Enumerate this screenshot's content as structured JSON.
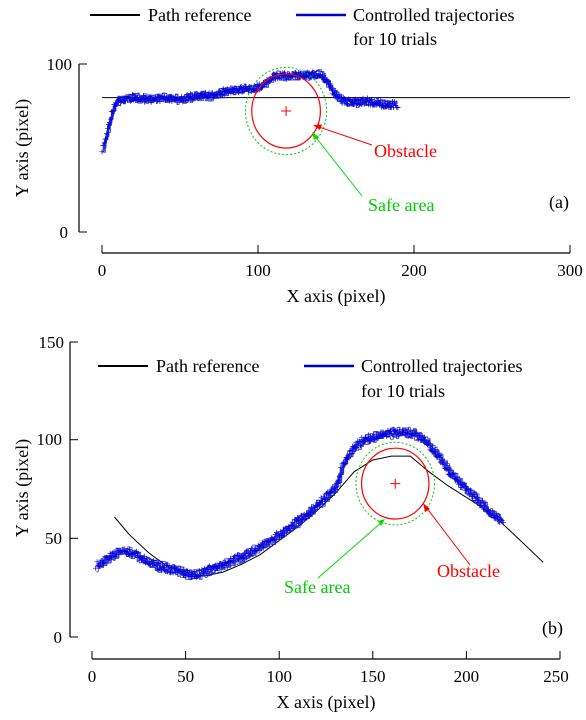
{
  "chart_data": [
    {
      "type": "line",
      "panel_label": "(a)",
      "xlabel": "X axis (pixel)",
      "ylabel": "Y axis (pixel)",
      "xlim": [
        0,
        300
      ],
      "ylim": [
        0,
        100
      ],
      "xticks": [
        "0",
        "100",
        "200",
        "300"
      ],
      "yticks": [
        "0",
        "100"
      ],
      "legend": {
        "position": "top",
        "entries": [
          {
            "label": "Path reference",
            "color": "#000000"
          },
          {
            "label_line1": "Controlled trajectories",
            "label_line2": "for 10 trials",
            "color": "#0000cc"
          }
        ]
      },
      "reference_path": {
        "x": [
          0,
          300
        ],
        "y": [
          80,
          80
        ]
      },
      "trajectory": {
        "x": [
          0,
          2,
          4,
          6,
          8,
          10,
          12,
          20,
          30,
          40,
          50,
          60,
          70,
          80,
          90,
          100,
          105,
          110,
          120,
          130,
          140,
          145,
          150,
          155,
          160,
          170,
          180,
          190
        ],
        "y": [
          47,
          55,
          63,
          70,
          75,
          78,
          79,
          80,
          79,
          80,
          79,
          81,
          81,
          84,
          85,
          86,
          89,
          93,
          93,
          93,
          94,
          88,
          81,
          78,
          77,
          78,
          76,
          76
        ]
      },
      "trials": 10,
      "obstacle": {
        "label": "Obstacle",
        "cx": 118,
        "cy": 72,
        "r": 22,
        "color": "#ff0000"
      },
      "safe_area": {
        "label": "Safe area",
        "cx": 118,
        "cy": 72,
        "r": 26,
        "color": "#00cc00"
      }
    },
    {
      "type": "line",
      "panel_label": "(b)",
      "xlabel": "X axis (pixel)",
      "ylabel": "Y axis (pixel)",
      "xlim": [
        0,
        250
      ],
      "ylim": [
        0,
        150
      ],
      "xticks": [
        "0",
        "50",
        "100",
        "150",
        "200",
        "250"
      ],
      "yticks": [
        "0",
        "50",
        "100",
        "150"
      ],
      "legend": {
        "position": "top",
        "entries": [
          {
            "label": "Path reference",
            "color": "#000000"
          },
          {
            "label_line1": "Controlled trajectories",
            "label_line2": "for 10 trials",
            "color": "#0000cc"
          }
        ]
      },
      "reference_path": {
        "x": [
          12,
          20,
          30,
          40,
          50,
          60,
          70,
          80,
          90,
          100,
          110,
          120,
          130,
          140,
          150,
          160,
          165,
          170,
          175,
          180,
          190,
          200,
          210,
          220,
          230,
          241
        ],
        "y": [
          61,
          52,
          43,
          36,
          32,
          31,
          33,
          37,
          42,
          49,
          56,
          64,
          73,
          84,
          90,
          92,
          92,
          92,
          88,
          84,
          77,
          71,
          65,
          57,
          48,
          38
        ]
      },
      "trajectory": {
        "x": [
          2,
          5,
          10,
          15,
          20,
          25,
          30,
          35,
          40,
          45,
          50,
          55,
          60,
          70,
          80,
          90,
          100,
          110,
          120,
          130,
          135,
          140,
          145,
          150,
          160,
          170,
          175,
          180,
          185,
          190,
          200,
          210,
          220
        ],
        "y": [
          36,
          38,
          41,
          44,
          43,
          41,
          38,
          36,
          35,
          34,
          32,
          32,
          33,
          37,
          41,
          46,
          52,
          59,
          67,
          76,
          90,
          97,
          100,
          102,
          104,
          104,
          102,
          98,
          92,
          85,
          75,
          66,
          57
        ]
      },
      "trials": 10,
      "obstacle": {
        "label": "Obstacle",
        "cx": 162,
        "cy": 78,
        "r": 18,
        "color": "#ff0000"
      },
      "safe_area": {
        "label": "Safe area",
        "cx": 162,
        "cy": 78,
        "r": 21,
        "color": "#00cc00"
      }
    }
  ]
}
